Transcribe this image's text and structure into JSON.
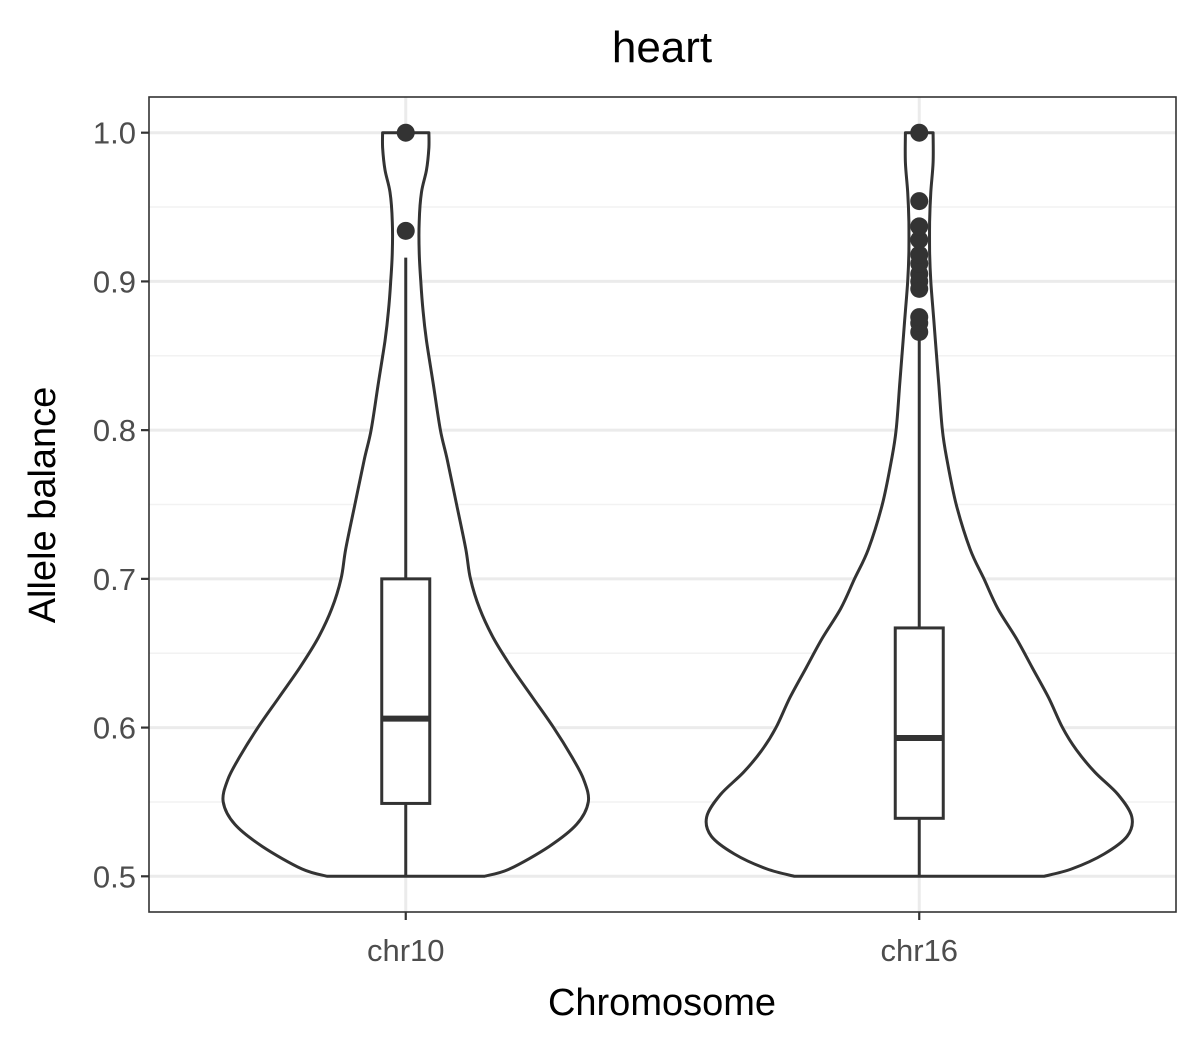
{
  "chart_data": {
    "type": "violin",
    "title": "heart",
    "xlabel": "Chromosome",
    "ylabel": "Allele balance",
    "ylim": [
      0.476,
      1.024
    ],
    "yticks": [
      0.5,
      0.6,
      0.7,
      0.8,
      0.9,
      1.0
    ],
    "ytick_labels": [
      "0.5",
      "0.6",
      "0.7",
      "0.8",
      "0.9",
      "1.0"
    ],
    "grid": true,
    "categories": [
      "chr10",
      "chr16"
    ],
    "groups": [
      {
        "name": "chr10",
        "box": {
          "lower_whisker": 0.5,
          "q1": 0.549,
          "median": 0.606,
          "q3": 0.7,
          "upper_whisker": 0.916
        },
        "outliers": [
          0.934,
          1.0
        ],
        "density": {
          "y": [
            0.5,
            0.505,
            0.52,
            0.535,
            0.55,
            0.565,
            0.58,
            0.6,
            0.62,
            0.64,
            0.66,
            0.68,
            0.7,
            0.72,
            0.75,
            0.78,
            0.8,
            0.83,
            0.86,
            0.88,
            0.9,
            0.92,
            0.94,
            0.96,
            0.975,
            0.99,
            1.0
          ],
          "width": [
            0.34,
            0.45,
            0.62,
            0.74,
            0.79,
            0.77,
            0.72,
            0.64,
            0.55,
            0.46,
            0.38,
            0.32,
            0.28,
            0.26,
            0.22,
            0.18,
            0.15,
            0.12,
            0.09,
            0.075,
            0.065,
            0.058,
            0.058,
            0.068,
            0.09,
            0.1,
            0.1
          ]
        }
      },
      {
        "name": "chr16",
        "box": {
          "lower_whisker": 0.5,
          "q1": 0.539,
          "median": 0.593,
          "q3": 0.667,
          "upper_whisker": 0.862
        },
        "outliers": [
          0.866,
          0.872,
          0.876,
          0.895,
          0.9,
          0.905,
          0.912,
          0.918,
          0.928,
          0.937,
          0.954,
          1.0
        ],
        "density": {
          "y": [
            0.5,
            0.505,
            0.515,
            0.527,
            0.54,
            0.555,
            0.57,
            0.585,
            0.6,
            0.62,
            0.64,
            0.66,
            0.68,
            0.7,
            0.72,
            0.75,
            0.78,
            0.8,
            0.83,
            0.86,
            0.88,
            0.9,
            0.92,
            0.94,
            0.96,
            0.98,
            1.0
          ],
          "width": [
            0.54,
            0.66,
            0.8,
            0.9,
            0.92,
            0.86,
            0.76,
            0.68,
            0.62,
            0.56,
            0.49,
            0.42,
            0.34,
            0.28,
            0.22,
            0.16,
            0.12,
            0.1,
            0.085,
            0.07,
            0.06,
            0.05,
            0.045,
            0.045,
            0.05,
            0.06,
            0.06
          ]
        }
      }
    ]
  }
}
